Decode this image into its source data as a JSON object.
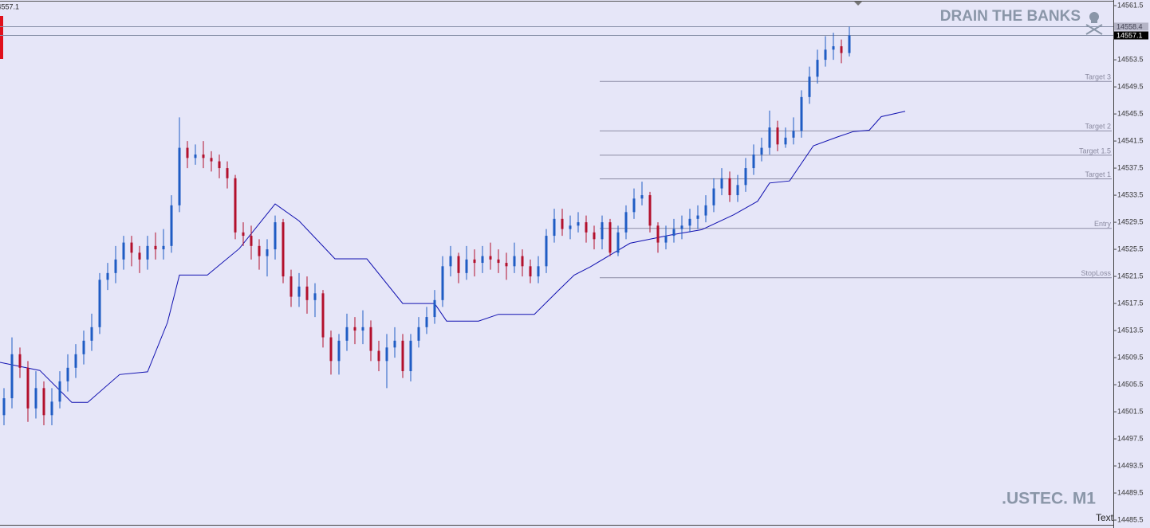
{
  "chart_data": {
    "type": "candlestick",
    "title": "DRAIN THE BANKS",
    "symbol_label": ".USTEC. M1",
    "corner_text": "Text",
    "xlim": [
      -0.5,
      139.1
    ],
    "ylim": [
      14484.8,
      14562.1
    ],
    "yticks": [
      14561.5,
      14553.5,
      14549.5,
      14545.5,
      14541.5,
      14537.5,
      14533.5,
      14529.5,
      14525.5,
      14521.5,
      14517.5,
      14513.5,
      14509.5,
      14505.5,
      14501.5,
      14497.5,
      14493.5,
      14489.5,
      14485.5
    ],
    "up_color": "#1f5cc4",
    "down_color": "#b3102c",
    "open": [
      14501,
      14503.5,
      14510,
      14508,
      14502,
      14505,
      14501,
      14503,
      14506,
      14508,
      14510,
      14512,
      14514,
      14521,
      14522,
      14524,
      14526.5,
      14525,
      14524,
      14526,
      14525.5,
      14526,
      14532,
      14540.5,
      14539,
      14539.5,
      14539,
      14538.5,
      14537.5,
      14536,
      14528,
      14527.5,
      14526,
      14524.5,
      14525.5,
      14529.5,
      14521.5,
      14518.5,
      14520,
      14518,
      14519,
      14512.5,
      14509,
      14512,
      14514,
      14513.5,
      14514,
      14510.5,
      14509,
      14511,
      14512,
      14507.5,
      14512,
      14514,
      14515.5,
      14518,
      14523,
      14524.5,
      14522,
      14524,
      14523.5,
      14524.5,
      14524,
      14523.5,
      14523,
      14524.5,
      14523,
      14521.5,
      14523,
      14527.5,
      14530,
      14528.5,
      14529,
      14529.5,
      14528,
      14527,
      14529.5,
      14525,
      14528,
      14531,
      14533,
      14533.5,
      14529,
      14526.5,
      14527.5,
      14528.5,
      14529,
      14530,
      14530.5,
      14532,
      14534.5,
      14536,
      14533.5,
      14535,
      14537.5,
      14539.5,
      14540.5,
      14543.5,
      14541,
      14542,
      14543,
      14548,
      14551,
      14553.5,
      14555,
      14555.5,
      14554.5
    ],
    "high": [
      14505,
      14512.5,
      14511,
      14509,
      14507.5,
      14506,
      14505,
      14507.5,
      14510,
      14511.5,
      14513.5,
      14516,
      14522,
      14523.5,
      14526,
      14527.5,
      14527.5,
      14526,
      14527.5,
      14528,
      14528.5,
      14533.5,
      14545,
      14541.5,
      14541,
      14541.5,
      14540,
      14539.5,
      14538.5,
      14536.5,
      14529.5,
      14529,
      14527,
      14527,
      14530.5,
      14530,
      14522.5,
      14522,
      14521.5,
      14520.5,
      14519.5,
      14513.5,
      14513,
      14516,
      14515.5,
      14516.5,
      14515,
      14512,
      14513,
      14514,
      14513,
      14513,
      14515.5,
      14517,
      14519.5,
      14524.5,
      14526,
      14525,
      14526,
      14525.5,
      14526,
      14526.5,
      14525.5,
      14525,
      14526.5,
      14525.5,
      14524,
      14524.5,
      14528.5,
      14531.5,
      14531.5,
      14530.5,
      14531,
      14530.5,
      14529,
      14530.5,
      14530,
      14529,
      14532,
      14534.5,
      14535.5,
      14534,
      14529.5,
      14529,
      14530,
      14530.5,
      14531.5,
      14532,
      14533.5,
      14536,
      14537.5,
      14537,
      14536.5,
      14539,
      14541,
      14542,
      14546,
      14544.5,
      14543.5,
      14545,
      14549,
      14552.5,
      14555,
      14557,
      14557.5,
      14556.5,
      14558.4
    ],
    "low": [
      14499.5,
      14502,
      14506.5,
      14500,
      14500.5,
      14499.5,
      14499.5,
      14502,
      14504.5,
      14506.5,
      14508.5,
      14510.5,
      14513,
      14519.5,
      14520.5,
      14522.5,
      14523,
      14522,
      14522.5,
      14524,
      14524,
      14525,
      14531,
      14537.5,
      14538,
      14537.5,
      14537,
      14536,
      14534.5,
      14527,
      14526,
      14524,
      14522.5,
      14521.5,
      14524,
      14520.5,
      14517,
      14517,
      14516,
      14515.5,
      14511,
      14507,
      14507,
      14510.5,
      14511.5,
      14511.5,
      14509,
      14507.5,
      14505,
      14509.5,
      14506.5,
      14506,
      14511,
      14513,
      14514.5,
      14517,
      14521.5,
      14520.5,
      14521,
      14521.5,
      14522,
      14522.5,
      14522,
      14521,
      14522,
      14521.5,
      14520.5,
      14520.5,
      14522,
      14526.5,
      14527.5,
      14527,
      14528,
      14526.5,
      14525.5,
      14525.5,
      14524.5,
      14524.5,
      14527,
      14530,
      14532,
      14528,
      14525,
      14525.5,
      14526.5,
      14527,
      14528,
      14528.5,
      14529.5,
      14531,
      14533.5,
      14532.5,
      14532.5,
      14534,
      14536.5,
      14538.5,
      14539.5,
      14540,
      14540.5,
      14541,
      14542,
      14547,
      14550,
      14552.5,
      14553.5,
      14553,
      14554
    ],
    "close": [
      14503.5,
      14510,
      14508,
      14502,
      14505,
      14501,
      14503,
      14506,
      14508,
      14510,
      14512,
      14514,
      14521,
      14522,
      14524,
      14526.5,
      14525,
      14524,
      14526,
      14525.5,
      14526,
      14532,
      14540.5,
      14539,
      14539.5,
      14539,
      14538.5,
      14537.5,
      14536,
      14528,
      14527.5,
      14526,
      14524.5,
      14525.5,
      14529.5,
      14521.5,
      14518.5,
      14520,
      14518,
      14519,
      14512.5,
      14509,
      14512,
      14514,
      14513.5,
      14514,
      14510.5,
      14509,
      14511,
      14512,
      14507.5,
      14512,
      14514,
      14515.5,
      14518,
      14523,
      14524.5,
      14522,
      14524,
      14523.5,
      14524.5,
      14524,
      14523.5,
      14523,
      14524.5,
      14523,
      14521.5,
      14523,
      14527.5,
      14530,
      14528.5,
      14529,
      14529.5,
      14528,
      14527,
      14529.5,
      14525,
      14528,
      14531,
      14533,
      14533.5,
      14529,
      14526.5,
      14527.5,
      14528.5,
      14529,
      14530,
      14530.5,
      14532,
      14534.5,
      14536,
      14533.5,
      14535,
      14537.5,
      14539.5,
      14540.5,
      14543.5,
      14541,
      14542,
      14543,
      14548,
      14551,
      14553.5,
      14555,
      14555.5,
      14554.5,
      14557.1
    ],
    "indicator": {
      "color": "#1010b0",
      "x": [
        -0.5,
        4.5,
        8.5,
        10.5,
        14.5,
        18,
        20.5,
        22,
        25.5,
        29.5,
        34,
        37,
        41.5,
        45.5,
        50,
        54,
        55.5,
        59.5,
        62,
        66.5,
        69.5,
        71.5,
        73.5,
        78.5,
        83.5,
        87.5,
        91.5,
        94.5,
        96,
        98.5,
        101.5,
        104.5,
        106.5,
        108.5,
        110,
        113
      ],
      "values": [
        14508.8,
        14507.6,
        14502.9,
        14502.9,
        14507,
        14507.4,
        14514.7,
        14521.7,
        14521.7,
        14525.6,
        14532.2,
        14529.7,
        14524.1,
        14524.1,
        14517.5,
        14517.5,
        14514.9,
        14514.9,
        14515.9,
        14515.9,
        14519.4,
        14521.7,
        14522.9,
        14526.4,
        14527.6,
        14528.4,
        14530.6,
        14532.6,
        14535.3,
        14535.6,
        14540.8,
        14542.1,
        14542.9,
        14543.1,
        14545.1,
        14545.9
      ]
    },
    "levels_from": 74.7,
    "levels": [
      {
        "label": "Target 3",
        "value": 14550.3
      },
      {
        "label": "Target 2",
        "value": 14543.0
      },
      {
        "label": "Target 1.5",
        "value": 14539.4
      },
      {
        "label": "Target 1",
        "value": 14535.9
      },
      {
        "label": "Entry",
        "value": 14528.6
      },
      {
        "label": "StopLoss",
        "value": 14521.3
      }
    ],
    "price_lines": [
      14558.4,
      14557.1
    ]
  }
}
